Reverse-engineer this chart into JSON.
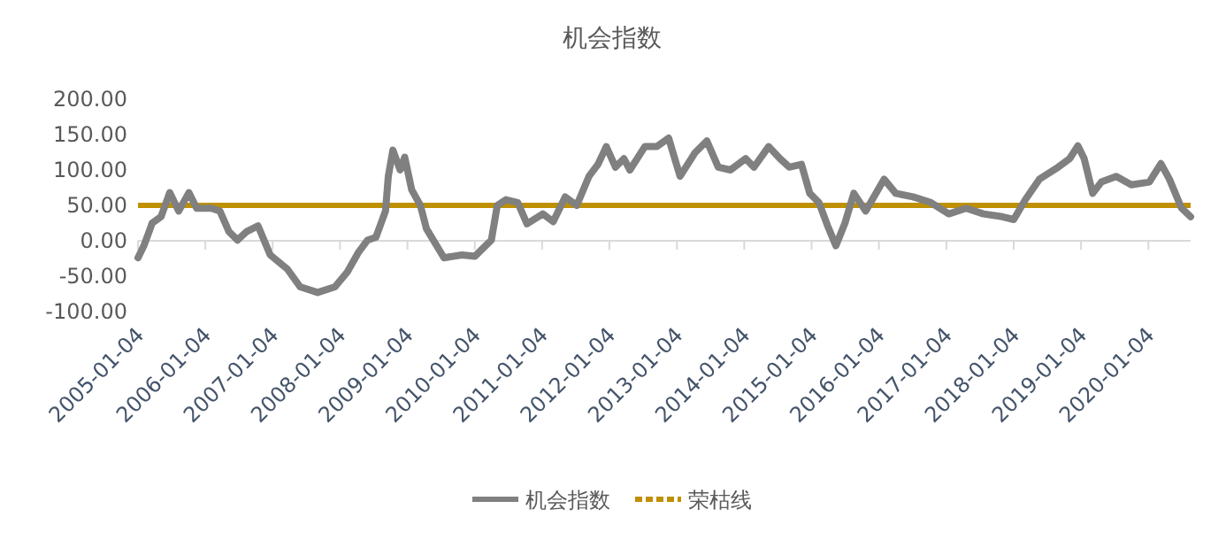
{
  "chart_data": {
    "type": "line",
    "title": "机会指数",
    "x": [
      "2005-01-04",
      "2005-02-05",
      "2005-03-22",
      "2005-05-09",
      "2005-06-25",
      "2005-08-13",
      "2005-10-07",
      "2005-11-18",
      "2006-02-06",
      "2006-03-24",
      "2006-05-12",
      "2006-06-27",
      "2006-08-16",
      "2006-10-17",
      "2006-12-22",
      "2007-03-25",
      "2007-06-02",
      "2007-09-05",
      "2007-12-08",
      "2008-02-13",
      "2008-04-14",
      "2008-06-02",
      "2008-07-17",
      "2008-09-07",
      "2008-09-22",
      "2008-10-17",
      "2008-11-25",
      "2008-12-20",
      "2009-01-27",
      "2009-03-15",
      "2009-04-17",
      "2009-07-21",
      "2009-10-26",
      "2010-01-04",
      "2010-04-04",
      "2010-05-06",
      "2010-06-22",
      "2010-08-25",
      "2010-10-14",
      "2011-01-08",
      "2011-03-05",
      "2011-05-09",
      "2011-07-11",
      "2011-09-15",
      "2011-11-03",
      "2011-12-18",
      "2012-02-06",
      "2012-03-22",
      "2012-04-24",
      "2012-07-14",
      "2012-09-17",
      "2012-11-20",
      "2013-01-21",
      "2013-04-11",
      "2013-06-15",
      "2013-08-16",
      "2013-10-21",
      "2014-01-11",
      "2014-02-26",
      "2014-05-16",
      "2014-07-17",
      "2014-09-05",
      "2014-11-10",
      "2014-12-25",
      "2015-02-13",
      "2015-04-01",
      "2015-05-16",
      "2015-07-04",
      "2015-08-21",
      "2015-10-24",
      "2016-02-01",
      "2016-04-04",
      "2016-07-07",
      "2016-10-12",
      "2017-01-17",
      "2017-04-21",
      "2017-07-24",
      "2017-11-03",
      "2018-01-04",
      "2018-03-08",
      "2018-05-23",
      "2018-09-02",
      "2018-11-03",
      "2018-12-18",
      "2019-01-21",
      "2019-03-08",
      "2019-04-24",
      "2019-07-14",
      "2019-10-04",
      "2020-01-09",
      "2020-03-12",
      "2020-04-27",
      "2020-07-02",
      "2020-08-20"
    ],
    "series": [
      {
        "name": "机会指数",
        "color": "#808080",
        "values": [
          -24,
          -7,
          25,
          34,
          68,
          42,
          68,
          46,
          46,
          42,
          13,
          1,
          13,
          21,
          -20,
          -40,
          -65,
          -73,
          -65,
          -44,
          -16,
          1,
          5,
          42,
          91,
          128,
          100,
          118,
          72,
          50,
          17,
          -24,
          -20,
          -22,
          1,
          50,
          58,
          54,
          24,
          38,
          27,
          62,
          50,
          91,
          108,
          133,
          104,
          116,
          100,
          133,
          133,
          145,
          91,
          124,
          141,
          104,
          100,
          116,
          104,
          133,
          116,
          104,
          108,
          67,
          54,
          21,
          -7,
          25,
          67,
          42,
          87,
          67,
          62,
          54,
          38,
          46,
          38,
          34,
          30,
          58,
          87,
          104,
          116,
          134,
          116,
          67,
          83,
          91,
          79,
          83,
          109,
          87,
          46,
          34
        ]
      }
    ],
    "ref_lines": [
      {
        "axis": "y",
        "value": 50,
        "label": "荣枯线",
        "color": "#bf9000"
      }
    ],
    "xlim": [
      "2005-01-04",
      "2020-08-20"
    ],
    "xticks": [
      "2005-01-04",
      "2006-01-04",
      "2007-01-04",
      "2008-01-04",
      "2009-01-04",
      "2010-01-04",
      "2011-01-04",
      "2012-01-04",
      "2013-01-04",
      "2014-01-04",
      "2015-01-04",
      "2016-01-04",
      "2017-01-04",
      "2018-01-04",
      "2019-01-04",
      "2020-01-04"
    ],
    "ylim": [
      -100,
      200
    ],
    "yticks": [
      {
        "value": -100,
        "label": "-100.00"
      },
      {
        "value": -50,
        "label": "-50.00"
      },
      {
        "value": 0,
        "label": "0.00"
      },
      {
        "value": 50,
        "label": "50.00"
      },
      {
        "value": 100,
        "label": "100.00"
      },
      {
        "value": 150,
        "label": "150.00"
      },
      {
        "value": 200,
        "label": "200.00"
      }
    ],
    "grid": false,
    "legend": "bottom"
  }
}
